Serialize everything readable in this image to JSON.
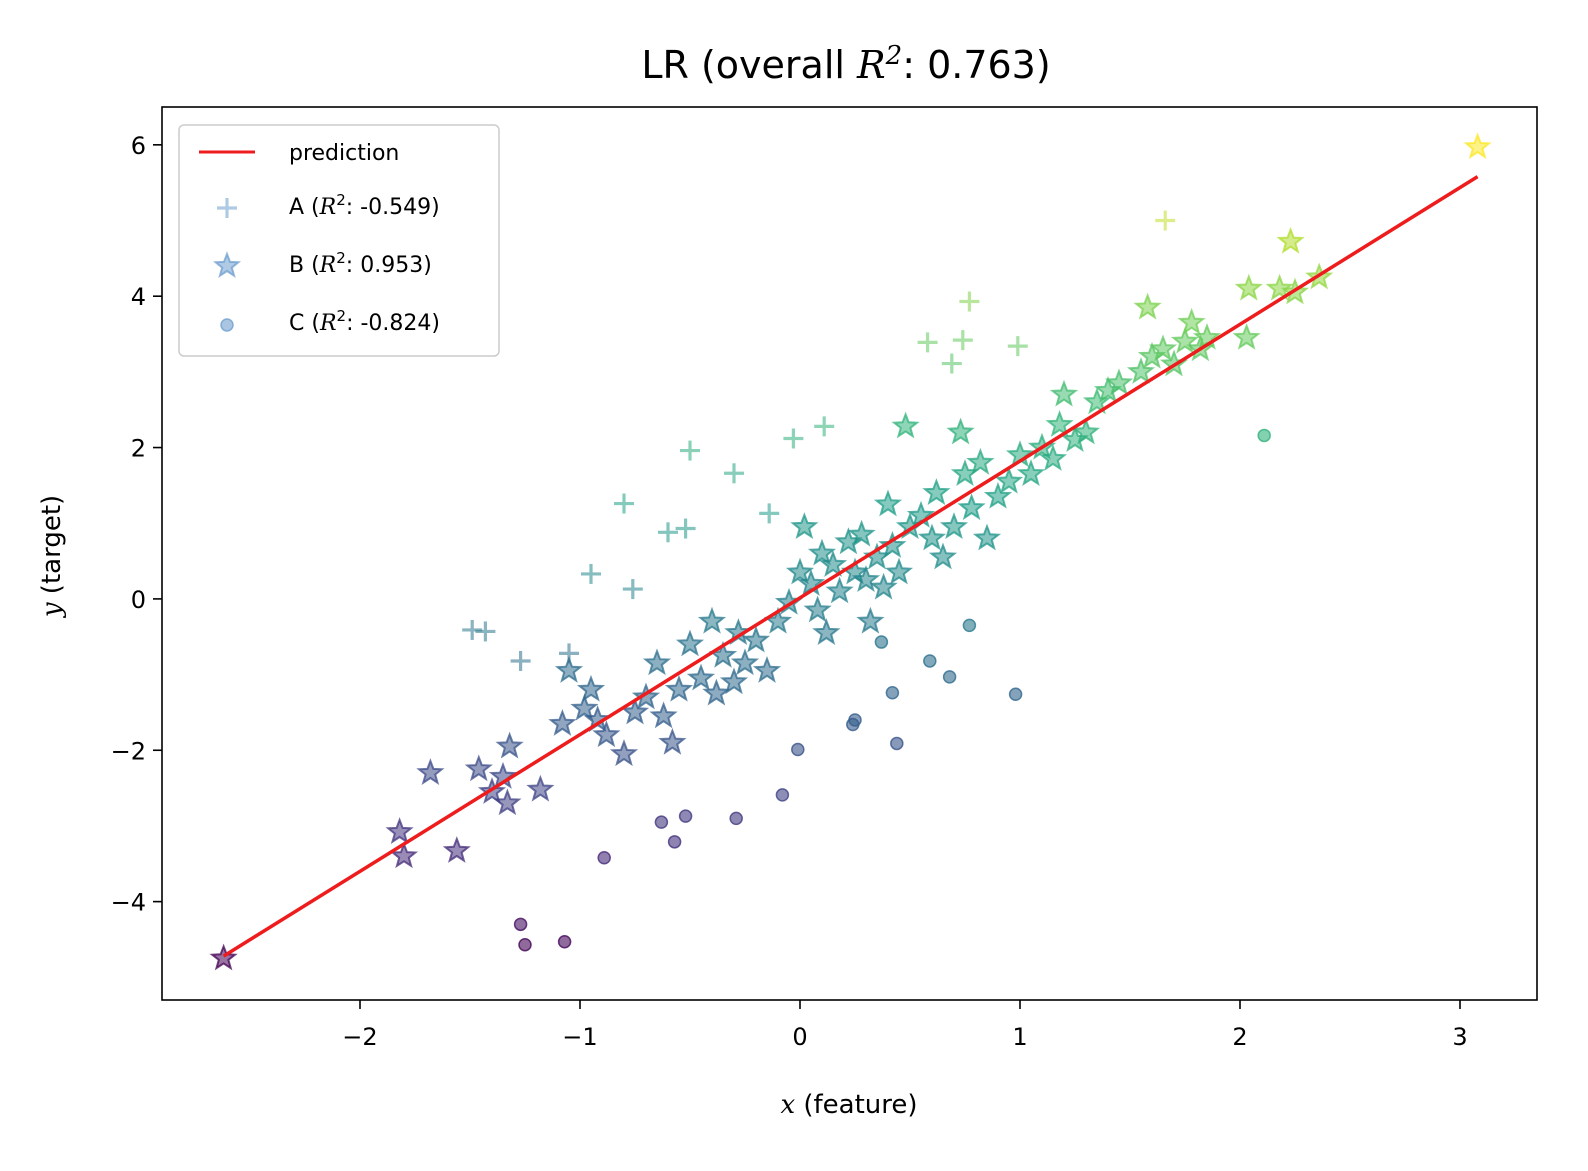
{
  "chart_data": {
    "type": "scatter",
    "title": {
      "prefix": "LR (overall ",
      "var": "R",
      "sup": "2",
      "suffix": ": 0.763)"
    },
    "xlabel": {
      "var": "x",
      "rest": " (feature)"
    },
    "ylabel": {
      "var": "y",
      "rest": " (target)"
    },
    "xlim": [
      -2.9,
      3.35
    ],
    "ylim": [
      -5.3,
      6.5
    ],
    "xticks": [
      -2,
      -1,
      0,
      1,
      2,
      3
    ],
    "yticks": [
      -4,
      -2,
      0,
      2,
      4,
      6
    ],
    "xtick_labels": [
      "−2",
      "−1",
      "0",
      "1",
      "2",
      "3"
    ],
    "ytick_labels": [
      "−4",
      "−2",
      "0",
      "2",
      "4",
      "6"
    ],
    "legend_position": "upper-left",
    "colormap": "viridis",
    "color_range": [
      -4.75,
      6.0
    ],
    "prediction": {
      "label": "prediction",
      "color": "#ee1c1c",
      "x": [
        -2.62,
        3.08
      ],
      "y": [
        -4.72,
        5.58
      ]
    },
    "series": [
      {
        "name": "A",
        "r2_value": "-0.549",
        "marker": "plus",
        "legend_color": "#6f9fcf",
        "points": [
          [
            -1.49,
            -0.41
          ],
          [
            -1.43,
            -0.43
          ],
          [
            -1.27,
            -0.82
          ],
          [
            -1.05,
            -0.72
          ],
          [
            -0.95,
            0.33
          ],
          [
            -0.8,
            1.26
          ],
          [
            -0.76,
            0.13
          ],
          [
            -0.6,
            0.88
          ],
          [
            -0.52,
            0.93
          ],
          [
            -0.5,
            1.96
          ],
          [
            -0.3,
            1.66
          ],
          [
            -0.14,
            1.13
          ],
          [
            -0.03,
            2.12
          ],
          [
            0.11,
            2.28
          ],
          [
            0.58,
            3.39
          ],
          [
            0.69,
            3.11
          ],
          [
            0.74,
            3.42
          ],
          [
            0.77,
            3.93
          ],
          [
            0.99,
            3.34
          ],
          [
            1.66,
            5.0
          ]
        ]
      },
      {
        "name": "B",
        "r2_value": "0.953",
        "marker": "star",
        "legend_color": "#6f9fcf",
        "points": [
          [
            -2.62,
            -4.75
          ],
          [
            -1.82,
            -3.08
          ],
          [
            -1.8,
            -3.4
          ],
          [
            -1.68,
            -2.3
          ],
          [
            -1.56,
            -3.33
          ],
          [
            -1.46,
            -2.25
          ],
          [
            -1.4,
            -2.55
          ],
          [
            -1.35,
            -2.35
          ],
          [
            -1.33,
            -2.7
          ],
          [
            -1.32,
            -1.95
          ],
          [
            -1.18,
            -2.52
          ],
          [
            -1.08,
            -1.65
          ],
          [
            -1.05,
            -0.95
          ],
          [
            -0.98,
            -1.45
          ],
          [
            -0.95,
            -1.2
          ],
          [
            -0.92,
            -1.6
          ],
          [
            -0.88,
            -1.8
          ],
          [
            -0.8,
            -2.05
          ],
          [
            -0.75,
            -1.5
          ],
          [
            -0.7,
            -1.3
          ],
          [
            -0.65,
            -0.85
          ],
          [
            -0.62,
            -1.55
          ],
          [
            -0.58,
            -1.9
          ],
          [
            -0.55,
            -1.2
          ],
          [
            -0.5,
            -0.6
          ],
          [
            -0.45,
            -1.05
          ],
          [
            -0.4,
            -0.3
          ],
          [
            -0.38,
            -1.25
          ],
          [
            -0.35,
            -0.75
          ],
          [
            -0.3,
            -1.1
          ],
          [
            -0.28,
            -0.45
          ],
          [
            -0.25,
            -0.85
          ],
          [
            -0.2,
            -0.55
          ],
          [
            -0.15,
            -0.95
          ],
          [
            -0.1,
            -0.3
          ],
          [
            -0.05,
            -0.05
          ],
          [
            0.0,
            0.35
          ],
          [
            0.02,
            0.95
          ],
          [
            0.05,
            0.2
          ],
          [
            0.08,
            -0.15
          ],
          [
            0.1,
            0.6
          ],
          [
            0.12,
            -0.45
          ],
          [
            0.15,
            0.45
          ],
          [
            0.18,
            0.1
          ],
          [
            0.22,
            0.75
          ],
          [
            0.25,
            0.35
          ],
          [
            0.28,
            0.85
          ],
          [
            0.3,
            0.25
          ],
          [
            0.32,
            -0.3
          ],
          [
            0.35,
            0.55
          ],
          [
            0.38,
            0.15
          ],
          [
            0.4,
            1.25
          ],
          [
            0.42,
            0.7
          ],
          [
            0.45,
            0.35
          ],
          [
            0.48,
            2.28
          ],
          [
            0.5,
            0.95
          ],
          [
            0.55,
            1.1
          ],
          [
            0.6,
            0.8
          ],
          [
            0.62,
            1.4
          ],
          [
            0.65,
            0.55
          ],
          [
            0.7,
            0.95
          ],
          [
            0.73,
            2.2
          ],
          [
            0.75,
            1.65
          ],
          [
            0.78,
            1.2
          ],
          [
            0.82,
            1.8
          ],
          [
            0.85,
            0.8
          ],
          [
            0.9,
            1.35
          ],
          [
            0.95,
            1.55
          ],
          [
            1.0,
            1.9
          ],
          [
            1.05,
            1.65
          ],
          [
            1.1,
            2.0
          ],
          [
            1.15,
            1.85
          ],
          [
            1.18,
            2.3
          ],
          [
            1.2,
            2.7
          ],
          [
            1.25,
            2.1
          ],
          [
            1.3,
            2.2
          ],
          [
            1.35,
            2.6
          ],
          [
            1.4,
            2.75
          ],
          [
            1.45,
            2.85
          ],
          [
            1.55,
            3.0
          ],
          [
            1.58,
            3.85
          ],
          [
            1.6,
            3.2
          ],
          [
            1.65,
            3.3
          ],
          [
            1.7,
            3.1
          ],
          [
            1.75,
            3.4
          ],
          [
            1.78,
            3.65
          ],
          [
            1.82,
            3.3
          ],
          [
            1.85,
            3.45
          ],
          [
            2.03,
            3.45
          ],
          [
            2.04,
            4.1
          ],
          [
            2.18,
            4.1
          ],
          [
            2.23,
            4.72
          ],
          [
            2.25,
            4.05
          ],
          [
            2.36,
            4.25
          ],
          [
            3.08,
            5.97
          ]
        ]
      },
      {
        "name": "C",
        "r2_value": "-0.824",
        "marker": "circle",
        "legend_color": "#6f9fcf",
        "points": [
          [
            -1.27,
            -4.3
          ],
          [
            -1.25,
            -4.57
          ],
          [
            -1.07,
            -4.53
          ],
          [
            -0.89,
            -3.42
          ],
          [
            -0.63,
            -2.95
          ],
          [
            -0.57,
            -3.21
          ],
          [
            -0.52,
            -2.87
          ],
          [
            -0.29,
            -2.9
          ],
          [
            -0.08,
            -2.59
          ],
          [
            -0.01,
            -1.99
          ],
          [
            0.24,
            -1.66
          ],
          [
            0.25,
            -1.6
          ],
          [
            0.37,
            -0.57
          ],
          [
            0.42,
            -1.24
          ],
          [
            0.44,
            -1.91
          ],
          [
            0.59,
            -0.82
          ],
          [
            0.68,
            -1.03
          ],
          [
            0.77,
            -0.35
          ],
          [
            0.98,
            -1.26
          ],
          [
            2.11,
            2.16
          ]
        ]
      }
    ]
  }
}
